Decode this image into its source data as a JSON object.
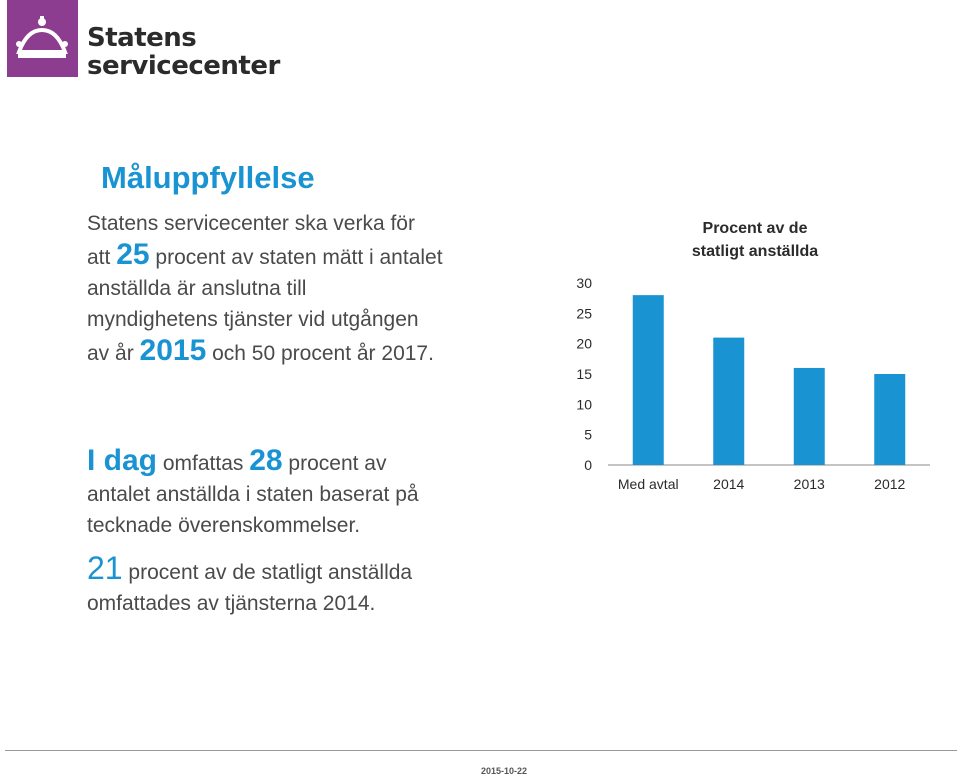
{
  "logo": {
    "line1": "Statens",
    "line2": "servicecenter"
  },
  "title": "Måluppfyllelse",
  "para1": {
    "l1": "Statens servicecenter ska verka för",
    "l2a": "att ",
    "l2b": "25",
    "l2c": " procent av staten mätt i antalet",
    "l3": "anställda är anslutna till",
    "l4": "myndighetens tjänster vid utgången",
    "l5a": "av år ",
    "l5b": "2015",
    "l5c": " och 50 procent år 2017."
  },
  "para2": {
    "a": "I dag",
    "b": " omfattas ",
    "c": "28",
    "d": " procent av",
    "l2": "antalet anställda i staten baserat på",
    "l3": "tecknade överenskommelser."
  },
  "para3": {
    "a": "21",
    "b": " procent av de statligt anställda",
    "l2": "omfattades av tjänsterna 2014."
  },
  "chart_data": {
    "type": "bar",
    "title": "Procent av de statligt anställda",
    "title_lines": [
      "Procent av de",
      "statligt anställda"
    ],
    "categories": [
      "Med avtal",
      "2014",
      "2013",
      "2012"
    ],
    "values": [
      28,
      21,
      16,
      15
    ],
    "ylim": [
      0,
      30
    ],
    "yticks": [
      "30",
      "25",
      "20",
      "15",
      "10",
      "5",
      "0"
    ],
    "bar_color": "#1a93d3",
    "xlabel": "",
    "ylabel": "",
    "grid": false,
    "legend": "none"
  },
  "footer": {
    "date": "2015-10-22"
  }
}
